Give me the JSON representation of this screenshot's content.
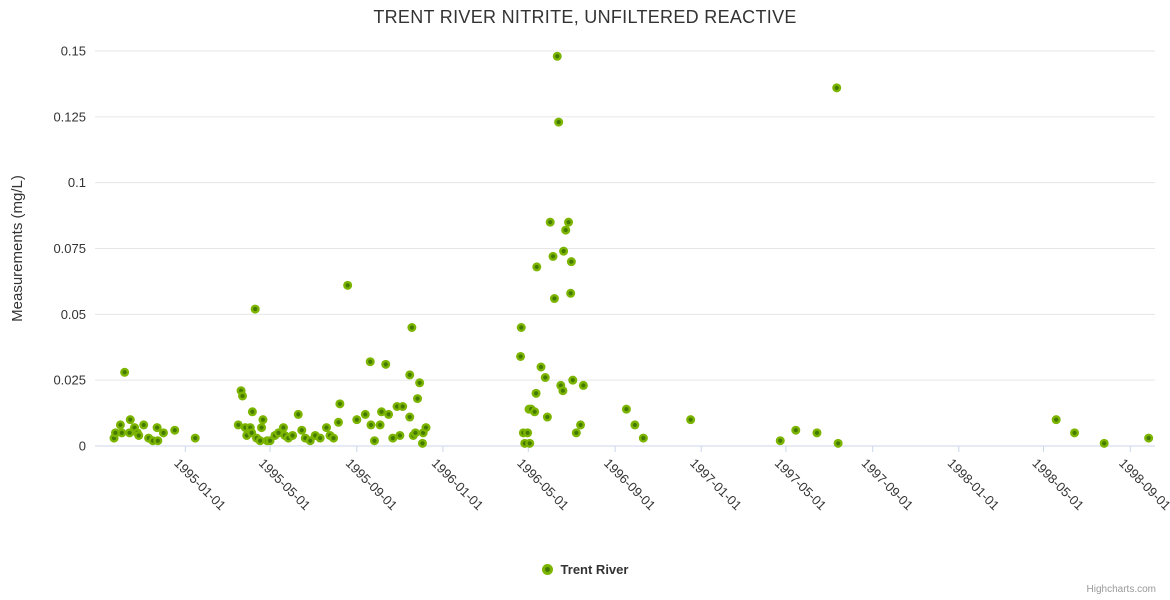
{
  "title": "TRENT RIVER NITRITE, UNFILTERED REACTIVE",
  "credits": "Highcharts.com",
  "chart_data": {
    "type": "scatter",
    "title": "TRENT RIVER NITRITE, UNFILTERED REACTIVE",
    "xlabel": "",
    "ylabel": "Measurements (mg/L)",
    "ylim": [
      0,
      0.15
    ],
    "y_ticks": [
      0,
      0.025,
      0.05,
      0.075,
      0.1,
      0.125,
      0.15
    ],
    "x_ticks": [
      "1995-01-01",
      "1995-05-01",
      "1995-09-01",
      "1996-01-01",
      "1996-05-01",
      "1996-09-01",
      "1997-01-01",
      "1997-05-01",
      "1997-09-01",
      "1998-01-01",
      "1998-05-01",
      "1998-09-01"
    ],
    "x_range": [
      "1994-08-26",
      "1998-10-06"
    ],
    "grid": "horizontal-only",
    "legend_position": "bottom-center",
    "colors": {
      "point_outer": "#7cb500",
      "point_inner": "#457a00",
      "grid": "#e6e6e6",
      "axis": "#ccd6eb",
      "text": "#333333",
      "credits": "#999999"
    },
    "series": [
      {
        "name": "Trent River",
        "points": [
          [
            "1994-09-22",
            0.003
          ],
          [
            "1994-09-24",
            0.005
          ],
          [
            "1994-10-01",
            0.008
          ],
          [
            "1994-10-03",
            0.005
          ],
          [
            "1994-10-07",
            0.028
          ],
          [
            "1994-10-14",
            0.005
          ],
          [
            "1994-10-15",
            0.01
          ],
          [
            "1994-10-21",
            0.007
          ],
          [
            "1994-10-25",
            0.005
          ],
          [
            "1994-10-27",
            0.004
          ],
          [
            "1994-11-03",
            0.008
          ],
          [
            "1994-11-10",
            0.003
          ],
          [
            "1994-11-16",
            0.002
          ],
          [
            "1994-11-22",
            0.007
          ],
          [
            "1994-11-23",
            0.002
          ],
          [
            "1994-12-01",
            0.005
          ],
          [
            "1994-12-17",
            0.006
          ],
          [
            "1995-01-15",
            0.003
          ],
          [
            "1995-03-17",
            0.008
          ],
          [
            "1995-03-21",
            0.021
          ],
          [
            "1995-03-23",
            0.019
          ],
          [
            "1995-03-27",
            0.007
          ],
          [
            "1995-03-29",
            0.004
          ],
          [
            "1995-04-03",
            0.007
          ],
          [
            "1995-04-05",
            0.005
          ],
          [
            "1995-04-06",
            0.013
          ],
          [
            "1995-04-10",
            0.052
          ],
          [
            "1995-04-12",
            0.003
          ],
          [
            "1995-04-17",
            0.002
          ],
          [
            "1995-04-19",
            0.007
          ],
          [
            "1995-04-21",
            0.01
          ],
          [
            "1995-04-27",
            0.002
          ],
          [
            "1995-05-01",
            0.002
          ],
          [
            "1995-05-08",
            0.004
          ],
          [
            "1995-05-13",
            0.005
          ],
          [
            "1995-05-20",
            0.007
          ],
          [
            "1995-05-22",
            0.004
          ],
          [
            "1995-05-27",
            0.003
          ],
          [
            "1995-06-02",
            0.004
          ],
          [
            "1995-06-10",
            0.012
          ],
          [
            "1995-06-15",
            0.006
          ],
          [
            "1995-06-20",
            0.003
          ],
          [
            "1995-06-27",
            0.002
          ],
          [
            "1995-07-04",
            0.004
          ],
          [
            "1995-07-11",
            0.003
          ],
          [
            "1995-07-20",
            0.007
          ],
          [
            "1995-07-25",
            0.004
          ],
          [
            "1995-07-30",
            0.003
          ],
          [
            "1995-08-06",
            0.009
          ],
          [
            "1995-08-08",
            0.016
          ],
          [
            "1995-08-19",
            0.061
          ],
          [
            "1995-09-01",
            0.01
          ],
          [
            "1995-09-13",
            0.012
          ],
          [
            "1995-09-20",
            0.032
          ],
          [
            "1995-09-21",
            0.008
          ],
          [
            "1995-09-26",
            0.002
          ],
          [
            "1995-10-04",
            0.008
          ],
          [
            "1995-10-06",
            0.013
          ],
          [
            "1995-10-12",
            0.031
          ],
          [
            "1995-10-16",
            0.012
          ],
          [
            "1995-10-22",
            0.003
          ],
          [
            "1995-10-28",
            0.015
          ],
          [
            "1995-11-01",
            0.004
          ],
          [
            "1995-11-05",
            0.015
          ],
          [
            "1995-11-15",
            0.027
          ],
          [
            "1995-11-15",
            0.011
          ],
          [
            "1995-11-18",
            0.045
          ],
          [
            "1995-11-20",
            0.004
          ],
          [
            "1995-11-23",
            0.005
          ],
          [
            "1995-11-26",
            0.018
          ],
          [
            "1995-11-29",
            0.024
          ],
          [
            "1995-12-03",
            0.001
          ],
          [
            "1995-12-04",
            0.005
          ],
          [
            "1995-12-08",
            0.007
          ],
          [
            "1996-04-20",
            0.034
          ],
          [
            "1996-04-21",
            0.045
          ],
          [
            "1996-04-24",
            0.005
          ],
          [
            "1996-04-26",
            0.001
          ],
          [
            "1996-04-30",
            0.005
          ],
          [
            "1996-05-02",
            0.014
          ],
          [
            "1996-05-03",
            0.001
          ],
          [
            "1996-05-05",
            0.014
          ],
          [
            "1996-05-10",
            0.013
          ],
          [
            "1996-05-12",
            0.02
          ],
          [
            "1996-05-13",
            0.068
          ],
          [
            "1996-05-19",
            0.03
          ],
          [
            "1996-05-25",
            0.026
          ],
          [
            "1996-05-28",
            0.011
          ],
          [
            "1996-06-01",
            0.085
          ],
          [
            "1996-06-05",
            0.072
          ],
          [
            "1996-06-07",
            0.056
          ],
          [
            "1996-06-11",
            0.148
          ],
          [
            "1996-06-13",
            0.123
          ],
          [
            "1996-06-16",
            0.023
          ],
          [
            "1996-06-19",
            0.021
          ],
          [
            "1996-06-20",
            0.074
          ],
          [
            "1996-06-23",
            0.082
          ],
          [
            "1996-06-27",
            0.085
          ],
          [
            "1996-06-30",
            0.058
          ],
          [
            "1996-07-01",
            0.07
          ],
          [
            "1996-07-03",
            0.025
          ],
          [
            "1996-07-08",
            0.005
          ],
          [
            "1996-07-14",
            0.008
          ],
          [
            "1996-07-18",
            0.023
          ],
          [
            "1996-09-17",
            0.014
          ],
          [
            "1996-09-29",
            0.008
          ],
          [
            "1996-10-11",
            0.003
          ],
          [
            "1996-12-17",
            0.01
          ],
          [
            "1997-04-23",
            0.002
          ],
          [
            "1997-05-15",
            0.006
          ],
          [
            "1997-06-14",
            0.005
          ],
          [
            "1997-07-12",
            0.136
          ],
          [
            "1997-07-14",
            0.001
          ],
          [
            "1998-05-19",
            0.01
          ],
          [
            "1998-06-14",
            0.005
          ],
          [
            "1998-07-26",
            0.001
          ],
          [
            "1998-09-27",
            0.003
          ]
        ]
      }
    ]
  }
}
